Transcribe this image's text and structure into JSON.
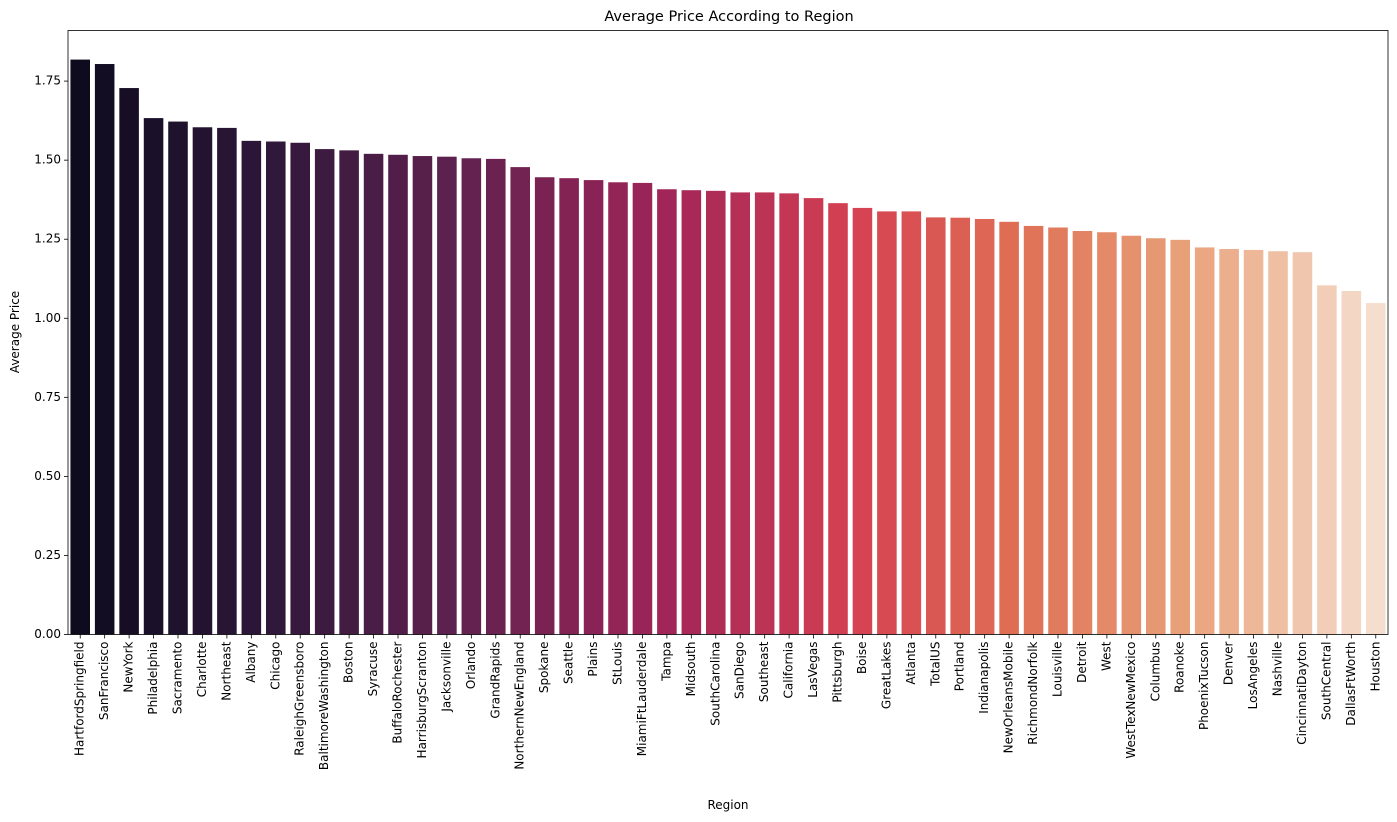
{
  "chart_data": {
    "type": "bar",
    "title": "Average Price According to Region",
    "xlabel": "Region",
    "ylabel": "Average Price",
    "ylim": [
      0,
      1.91
    ],
    "yticks": [
      "0.00",
      "0.25",
      "0.50",
      "0.75",
      "1.00",
      "1.25",
      "1.50",
      "1.75"
    ],
    "ytick_values": [
      0,
      0.25,
      0.5,
      0.75,
      1.0,
      1.25,
      1.5,
      1.75
    ],
    "grid": false,
    "palette": "rocket",
    "categories": [
      "HartfordSpringfield",
      "SanFrancisco",
      "NewYork",
      "Philadelphia",
      "Sacramento",
      "Charlotte",
      "Northeast",
      "Albany",
      "Chicago",
      "RaleighGreensboro",
      "BaltimoreWashington",
      "Boston",
      "Syracuse",
      "BuffaloRochester",
      "HarrisburgScranton",
      "Jacksonville",
      "Orlando",
      "GrandRapids",
      "NorthernNewEngland",
      "Spokane",
      "Seattle",
      "Plains",
      "StLouis",
      "MiamiFtLauderdale",
      "Tampa",
      "Midsouth",
      "SouthCarolina",
      "SanDiego",
      "Southeast",
      "California",
      "LasVegas",
      "Pittsburgh",
      "Boise",
      "GreatLakes",
      "Atlanta",
      "TotalUS",
      "Portland",
      "Indianapolis",
      "NewOrleansMobile",
      "RichmondNorfolk",
      "Louisville",
      "Detroit",
      "West",
      "WestTexNewMexico",
      "Columbus",
      "Roanoke",
      "PhoenixTucson",
      "Denver",
      "LosAngeles",
      "Nashville",
      "CincinnatiDayton",
      "SouthCentral",
      "DallasFtWorth",
      "Houston"
    ],
    "values": [
      1.818,
      1.804,
      1.728,
      1.633,
      1.622,
      1.604,
      1.602,
      1.561,
      1.559,
      1.555,
      1.535,
      1.531,
      1.52,
      1.517,
      1.513,
      1.511,
      1.506,
      1.504,
      1.478,
      1.446,
      1.443,
      1.437,
      1.43,
      1.428,
      1.408,
      1.405,
      1.403,
      1.398,
      1.398,
      1.395,
      1.38,
      1.364,
      1.349,
      1.338,
      1.338,
      1.319,
      1.318,
      1.314,
      1.305,
      1.292,
      1.287,
      1.276,
      1.272,
      1.261,
      1.253,
      1.248,
      1.224,
      1.219,
      1.216,
      1.212,
      1.209,
      1.104,
      1.086,
      1.048
    ]
  }
}
